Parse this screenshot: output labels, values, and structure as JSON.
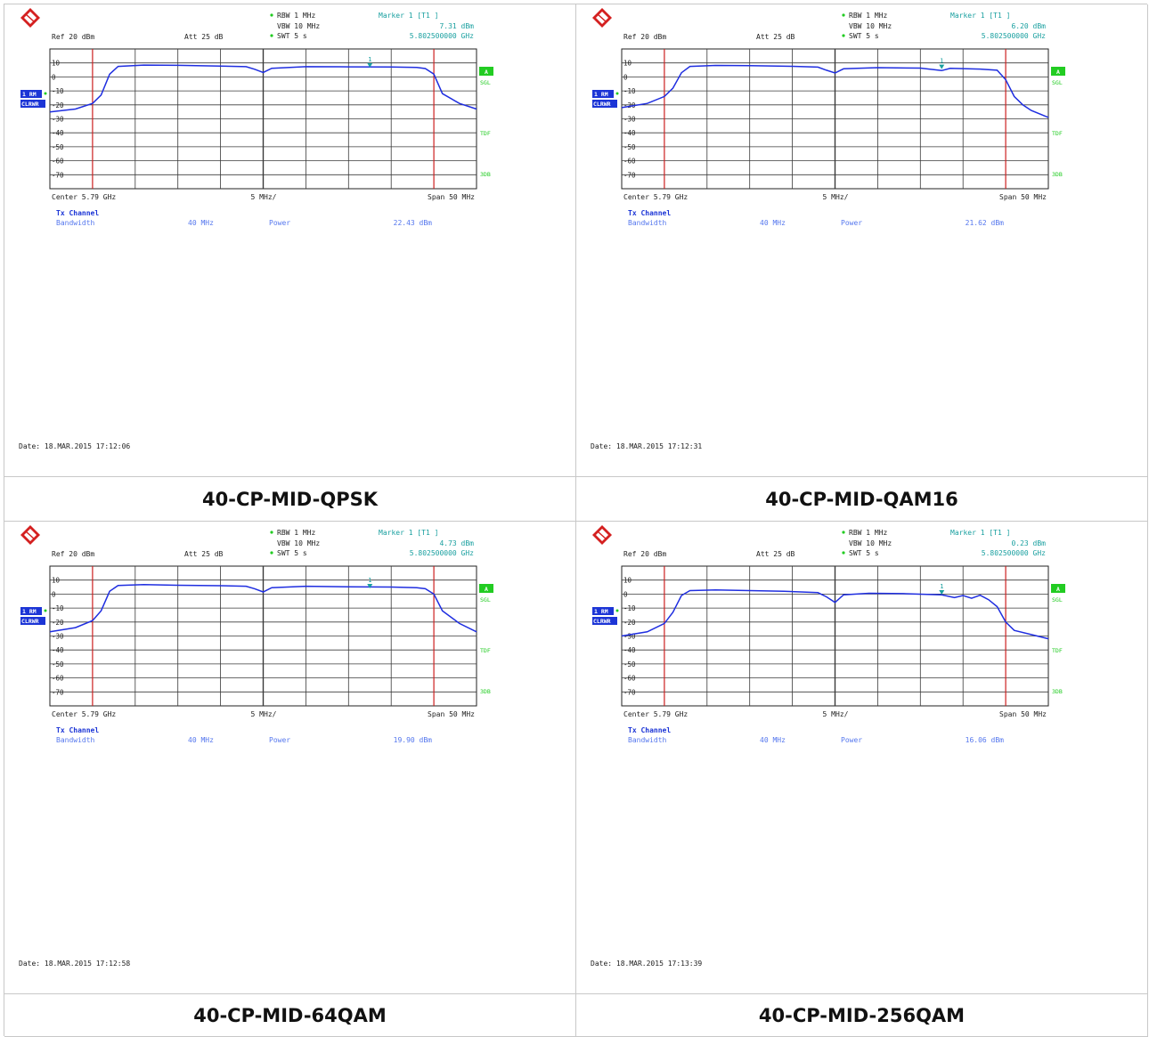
{
  "panels": [
    {
      "caption": "40-CP-MID-QPSK",
      "header": {
        "rbw": "RBW 1 MHz",
        "vbw": "VBW 10 MHz",
        "swt": "SWT 5 s",
        "marker_label": "Marker 1 [T1 ]",
        "marker_level": "7.31 dBm",
        "marker_freq": "5.802500000 GHz",
        "ref": "Ref  20 dBm",
        "att": "Att  25 dB"
      },
      "side": {
        "trace_tag": "1 RM",
        "trace_mode": "CLRWR",
        "tag_a": "A",
        "tag_sgl": "SGL",
        "tag_tdf": "TDF",
        "tag_3db": "3DB"
      },
      "footer": {
        "center": "Center  5.79 GHz",
        "div": "5 MHz/",
        "span": "Span  50 MHz"
      },
      "measurement": {
        "title": "Tx Channel",
        "bw_label": "Bandwidth",
        "bw_value": "40 MHz",
        "power_label": "Power",
        "power_value": "22.43 dBm"
      },
      "date": "Date: 18.MAR.2015  17:12:06"
    },
    {
      "caption": "40-CP-MID-QAM16",
      "header": {
        "rbw": "RBW 1 MHz",
        "vbw": "VBW 10 MHz",
        "swt": "SWT 5 s",
        "marker_label": "Marker 1 [T1 ]",
        "marker_level": "6.20 dBm",
        "marker_freq": "5.802500000 GHz",
        "ref": "Ref  20 dBm",
        "att": "Att  25 dB"
      },
      "side": {
        "trace_tag": "1 RM",
        "trace_mode": "CLRWR",
        "tag_a": "A",
        "tag_sgl": "SGL",
        "tag_tdf": "TDF",
        "tag_3db": "3DB"
      },
      "footer": {
        "center": "Center  5.79 GHz",
        "div": "5 MHz/",
        "span": "Span  50 MHz"
      },
      "measurement": {
        "title": "Tx Channel",
        "bw_label": "Bandwidth",
        "bw_value": "40 MHz",
        "power_label": "Power",
        "power_value": "21.62 dBm"
      },
      "date": "Date: 18.MAR.2015  17:12:31"
    },
    {
      "caption": "40-CP-MID-64QAM",
      "header": {
        "rbw": "RBW 1 MHz",
        "vbw": "VBW 10 MHz",
        "swt": "SWT 5 s",
        "marker_label": "Marker 1 [T1 ]",
        "marker_level": "4.73 dBm",
        "marker_freq": "5.802500000 GHz",
        "ref": "Ref  20 dBm",
        "att": "Att  25 dB"
      },
      "side": {
        "trace_tag": "1 RM",
        "trace_mode": "CLRWR",
        "tag_a": "A",
        "tag_sgl": "SGL",
        "tag_tdf": "TDF",
        "tag_3db": "3DB"
      },
      "footer": {
        "center": "Center  5.79 GHz",
        "div": "5 MHz/",
        "span": "Span  50 MHz"
      },
      "measurement": {
        "title": "Tx Channel",
        "bw_label": "Bandwidth",
        "bw_value": "40 MHz",
        "power_label": "Power",
        "power_value": "19.90 dBm"
      },
      "date": "Date: 18.MAR.2015  17:12:58"
    },
    {
      "caption": "40-CP-MID-256QAM",
      "header": {
        "rbw": "RBW 1 MHz",
        "vbw": "VBW 10 MHz",
        "swt": "SWT 5 s",
        "marker_label": "Marker 1 [T1 ]",
        "marker_level": "0.23 dBm",
        "marker_freq": "5.802500000 GHz",
        "ref": "Ref  20 dBm",
        "att": "Att  25 dB"
      },
      "side": {
        "trace_tag": "1 RM",
        "trace_mode": "CLRWR",
        "tag_a": "A",
        "tag_sgl": "SGL",
        "tag_tdf": "TDF",
        "tag_3db": "3DB"
      },
      "footer": {
        "center": "Center  5.79 GHz",
        "div": "5 MHz/",
        "span": "Span  50 MHz"
      },
      "measurement": {
        "title": "Tx Channel",
        "bw_label": "Bandwidth",
        "bw_value": "40 MHz",
        "power_label": "Power",
        "power_value": "16.06 dBm"
      },
      "date": "Date: 18.MAR.2015  17:13:39"
    }
  ],
  "colors": {
    "trace": "#1f2ee0",
    "grid": "#3a3a3a",
    "limit_line": "#cc2020",
    "marker": "#1aa0a0",
    "label_blue": "#5577ee",
    "tag_green": "#22cc22",
    "tag_blue": "#1c35d6"
  },
  "chart_data": [
    {
      "type": "line",
      "x_unit": "GHz",
      "y_unit": "dBm",
      "xlim": [
        5.765,
        5.815
      ],
      "ylim": [
        -80,
        20
      ],
      "yticks": [
        10,
        0,
        -10,
        -20,
        -30,
        -40,
        -50,
        -60,
        -70
      ],
      "channel_lines_x": [
        5.77,
        5.81
      ],
      "marker": {
        "x": 5.8025,
        "y": 7.31
      },
      "series": [
        {
          "values": [
            [
              5.765,
              -25
            ],
            [
              5.768,
              -23
            ],
            [
              5.77,
              -19
            ],
            [
              5.771,
              -13
            ],
            [
              5.772,
              2
            ],
            [
              5.773,
              7.5
            ],
            [
              5.776,
              8.5
            ],
            [
              5.78,
              8.3
            ],
            [
              5.785,
              7.8
            ],
            [
              5.788,
              7.3
            ],
            [
              5.789,
              5.5
            ],
            [
              5.79,
              3.2
            ],
            [
              5.791,
              6.2
            ],
            [
              5.795,
              7.3
            ],
            [
              5.8,
              7.2
            ],
            [
              5.805,
              7.1
            ],
            [
              5.808,
              6.8
            ],
            [
              5.809,
              6.0
            ],
            [
              5.81,
              2
            ],
            [
              5.811,
              -12
            ],
            [
              5.813,
              -19
            ],
            [
              5.815,
              -23
            ]
          ]
        }
      ]
    },
    {
      "type": "line",
      "x_unit": "GHz",
      "y_unit": "dBm",
      "xlim": [
        5.765,
        5.815
      ],
      "ylim": [
        -80,
        20
      ],
      "yticks": [
        10,
        0,
        -10,
        -20,
        -30,
        -40,
        -50,
        -60,
        -70
      ],
      "channel_lines_x": [
        5.77,
        5.81
      ],
      "marker": {
        "x": 5.8025,
        "y": 6.2
      },
      "series": [
        {
          "values": [
            [
              5.765,
              -22
            ],
            [
              5.768,
              -19
            ],
            [
              5.77,
              -14
            ],
            [
              5.771,
              -8
            ],
            [
              5.772,
              3
            ],
            [
              5.773,
              7.5
            ],
            [
              5.776,
              8.2
            ],
            [
              5.78,
              8.0
            ],
            [
              5.785,
              7.6
            ],
            [
              5.788,
              7.0
            ],
            [
              5.789,
              4.8
            ],
            [
              5.79,
              2.8
            ],
            [
              5.791,
              5.8
            ],
            [
              5.795,
              6.6
            ],
            [
              5.8,
              6.3
            ],
            [
              5.8025,
              4.5
            ],
            [
              5.8035,
              6.1
            ],
            [
              5.807,
              5.6
            ],
            [
              5.809,
              4.8
            ],
            [
              5.81,
              -2
            ],
            [
              5.811,
              -14
            ],
            [
              5.812,
              -20
            ],
            [
              5.813,
              -24
            ],
            [
              5.815,
              -29
            ]
          ]
        }
      ]
    },
    {
      "type": "line",
      "x_unit": "GHz",
      "y_unit": "dBm",
      "xlim": [
        5.765,
        5.815
      ],
      "ylim": [
        -80,
        20
      ],
      "yticks": [
        10,
        0,
        -10,
        -20,
        -30,
        -40,
        -50,
        -60,
        -70
      ],
      "channel_lines_x": [
        5.77,
        5.81
      ],
      "marker": {
        "x": 5.8025,
        "y": 4.73
      },
      "series": [
        {
          "values": [
            [
              5.765,
              -27
            ],
            [
              5.768,
              -24
            ],
            [
              5.77,
              -19
            ],
            [
              5.771,
              -12
            ],
            [
              5.772,
              2
            ],
            [
              5.773,
              6.2
            ],
            [
              5.776,
              6.8
            ],
            [
              5.78,
              6.3
            ],
            [
              5.785,
              6.0
            ],
            [
              5.788,
              5.6
            ],
            [
              5.789,
              3.8
            ],
            [
              5.79,
              1.5
            ],
            [
              5.791,
              4.6
            ],
            [
              5.795,
              5.6
            ],
            [
              5.8,
              5.2
            ],
            [
              5.805,
              5.0
            ],
            [
              5.808,
              4.6
            ],
            [
              5.809,
              3.8
            ],
            [
              5.81,
              0
            ],
            [
              5.811,
              -12
            ],
            [
              5.813,
              -21
            ],
            [
              5.815,
              -27
            ]
          ]
        }
      ]
    },
    {
      "type": "line",
      "x_unit": "GHz",
      "y_unit": "dBm",
      "xlim": [
        5.765,
        5.815
      ],
      "ylim": [
        -80,
        20
      ],
      "yticks": [
        10,
        0,
        -10,
        -20,
        -30,
        -40,
        -50,
        -60,
        -70
      ],
      "channel_lines_x": [
        5.77,
        5.81
      ],
      "marker": {
        "x": 5.8025,
        "y": 0.23
      },
      "series": [
        {
          "values": [
            [
              5.765,
              -30
            ],
            [
              5.768,
              -27
            ],
            [
              5.77,
              -21
            ],
            [
              5.771,
              -13
            ],
            [
              5.772,
              -1
            ],
            [
              5.773,
              2.5
            ],
            [
              5.776,
              3.0
            ],
            [
              5.78,
              2.5
            ],
            [
              5.784,
              2.0
            ],
            [
              5.786,
              1.5
            ],
            [
              5.788,
              1.0
            ],
            [
              5.789,
              -2
            ],
            [
              5.79,
              -6
            ],
            [
              5.791,
              -0.5
            ],
            [
              5.794,
              0.6
            ],
            [
              5.798,
              0.3
            ],
            [
              5.8025,
              -0.6
            ],
            [
              5.804,
              -2.5
            ],
            [
              5.805,
              -1
            ],
            [
              5.806,
              -3
            ],
            [
              5.807,
              -0.8
            ],
            [
              5.808,
              -4
            ],
            [
              5.809,
              -9
            ],
            [
              5.81,
              -20
            ],
            [
              5.811,
              -26
            ],
            [
              5.813,
              -29
            ],
            [
              5.815,
              -32
            ]
          ]
        }
      ]
    }
  ]
}
